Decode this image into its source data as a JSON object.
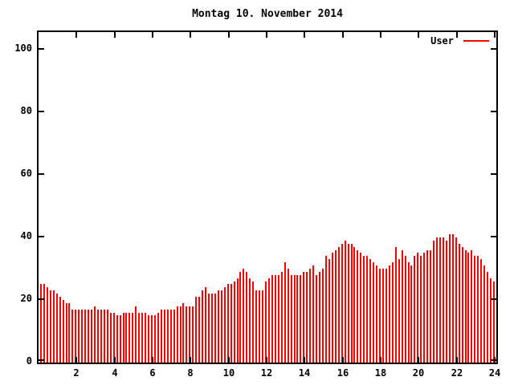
{
  "window": {
    "background": "#ffffff",
    "foreground": "#000000"
  },
  "chart_data": {
    "type": "bar",
    "style": "impulses",
    "title": "Montag 10. November 2014",
    "xlabel": "",
    "ylabel": "",
    "xlim": [
      0,
      24
    ],
    "ylim": [
      0,
      105
    ],
    "xticks": [
      2,
      4,
      6,
      8,
      10,
      12,
      14,
      16,
      18,
      20,
      22,
      24
    ],
    "yticks": [
      0,
      20,
      40,
      60,
      80,
      100
    ],
    "grid": false,
    "border": true,
    "legend_position": "top-right-inside",
    "legend": [
      {
        "name": "User",
        "color": "#ff0000"
      }
    ],
    "x_start_hour": 0,
    "sample_interval_minutes": 10,
    "series": [
      {
        "name": "User",
        "color": "#ff0000",
        "values": [
          25,
          25,
          24,
          23,
          23,
          22,
          21,
          20,
          19,
          19,
          17,
          17,
          17,
          17,
          17,
          17,
          17,
          18,
          17,
          17,
          17,
          17,
          16,
          16,
          15,
          15,
          16,
          16,
          16,
          16,
          18,
          16,
          16,
          16,
          15,
          15,
          15,
          16,
          17,
          17,
          17,
          17,
          17,
          18,
          18,
          19,
          18,
          18,
          18,
          21,
          21,
          23,
          24,
          22,
          22,
          22,
          23,
          23,
          24,
          25,
          25,
          26,
          27,
          29,
          30,
          29,
          27,
          26,
          23,
          23,
          23,
          26,
          27,
          28,
          28,
          28,
          29,
          32,
          30,
          28,
          28,
          28,
          28,
          29,
          29,
          30,
          31,
          28,
          29,
          30,
          34,
          33,
          35,
          36,
          37,
          38,
          39,
          38,
          38,
          37,
          36,
          35,
          34,
          34,
          33,
          32,
          31,
          30,
          30,
          30,
          31,
          32,
          37,
          33,
          36,
          34,
          32,
          31,
          34,
          35,
          34,
          35,
          36,
          36,
          39,
          40,
          40,
          40,
          39,
          41,
          41,
          40,
          38,
          37,
          36,
          35,
          36,
          34,
          34,
          33,
          31,
          29,
          27,
          26
        ]
      }
    ]
  }
}
